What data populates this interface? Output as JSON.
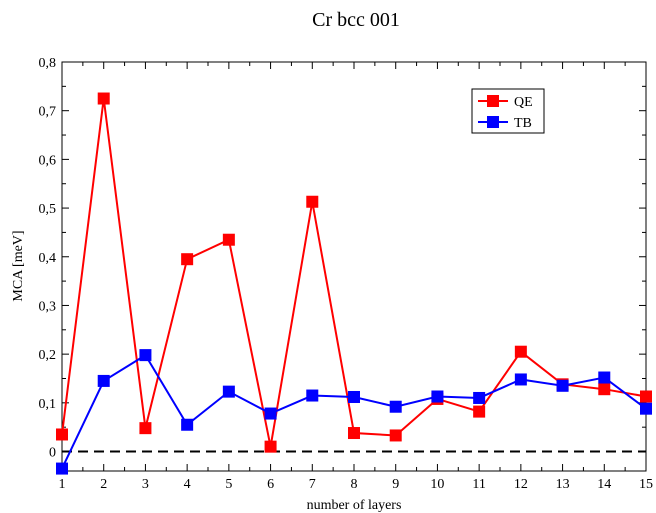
{
  "chart_data": {
    "type": "line",
    "title": "Cr bcc 001",
    "xlabel": "number of layers",
    "ylabel": "MCA [meV]",
    "xlim": [
      1,
      15
    ],
    "ylim": [
      -0.04,
      0.8
    ],
    "x_ticks": [
      "1",
      "2",
      "3",
      "4",
      "5",
      "6",
      "7",
      "8",
      "9",
      "10",
      "11",
      "12",
      "13",
      "14",
      "15"
    ],
    "y_ticks": [
      "0",
      "0,1",
      "0,2",
      "0,3",
      "0,4",
      "0,5",
      "0,6",
      "0,7",
      "0,8"
    ],
    "y_tick_values": [
      0,
      0.1,
      0.2,
      0.3,
      0.4,
      0.5,
      0.6,
      0.7,
      0.8
    ],
    "x": [
      1,
      2,
      3,
      4,
      5,
      6,
      7,
      8,
      9,
      10,
      11,
      12,
      13,
      14,
      15
    ],
    "reference_line": {
      "y": 0,
      "style": "dashed",
      "color": "#000000"
    },
    "legend_position": "top-right",
    "grid": false,
    "series": [
      {
        "name": "QE",
        "color": "#ff0000",
        "marker": "square",
        "values": [
          0.035,
          0.725,
          0.048,
          0.395,
          0.435,
          0.01,
          0.513,
          0.038,
          0.033,
          0.108,
          0.082,
          0.205,
          0.138,
          0.128,
          0.113
        ]
      },
      {
        "name": "TB",
        "color": "#0000ff",
        "marker": "square",
        "values": [
          -0.035,
          0.145,
          0.198,
          0.055,
          0.123,
          0.078,
          0.115,
          0.112,
          0.092,
          0.113,
          0.11,
          0.148,
          0.135,
          0.152,
          0.088
        ]
      }
    ]
  }
}
